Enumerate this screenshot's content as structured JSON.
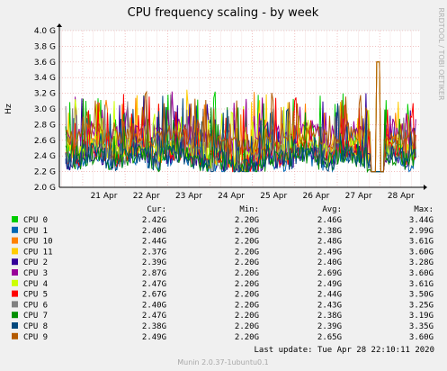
{
  "chart_data": {
    "type": "line",
    "title": "CPU frequency scaling - by week",
    "ylabel": "Hz",
    "ylim": [
      2.0,
      4.0
    ],
    "yticks": [
      "2.0 G",
      "2.2 G",
      "2.4 G",
      "2.6 G",
      "2.8 G",
      "3.0 G",
      "3.2 G",
      "3.4 G",
      "3.6 G",
      "3.8 G",
      "4.0 G"
    ],
    "xticks": [
      "21 Apr",
      "22 Apr",
      "23 Apr",
      "24 Apr",
      "25 Apr",
      "26 Apr",
      "27 Apr",
      "28 Apr"
    ],
    "x_range_days": [
      20.45,
      28.95
    ],
    "grid": true,
    "watermark": "RRDTOOL / TOBI OETIKER",
    "table_headers": [
      "Cur:",
      "Min:",
      "Avg:",
      "Max:"
    ],
    "series": [
      {
        "name": "CPU 0",
        "color": "#00cc00",
        "cur": "2.42G",
        "min": "2.20G",
        "avg": "2.46G",
        "max": "3.44G"
      },
      {
        "name": "CPU 1",
        "color": "#0066b3",
        "cur": "2.40G",
        "min": "2.20G",
        "avg": "2.38G",
        "max": "2.99G"
      },
      {
        "name": "CPU 10",
        "color": "#ff8000",
        "cur": "2.44G",
        "min": "2.20G",
        "avg": "2.48G",
        "max": "3.61G"
      },
      {
        "name": "CPU 11",
        "color": "#ffcc00",
        "cur": "2.37G",
        "min": "2.20G",
        "avg": "2.49G",
        "max": "3.60G"
      },
      {
        "name": "CPU 2",
        "color": "#330099",
        "cur": "2.39G",
        "min": "2.20G",
        "avg": "2.40G",
        "max": "3.28G"
      },
      {
        "name": "CPU 3",
        "color": "#990099",
        "cur": "2.87G",
        "min": "2.20G",
        "avg": "2.69G",
        "max": "3.60G"
      },
      {
        "name": "CPU 4",
        "color": "#ccff00",
        "cur": "2.47G",
        "min": "2.20G",
        "avg": "2.49G",
        "max": "3.61G"
      },
      {
        "name": "CPU 5",
        "color": "#ff0000",
        "cur": "2.67G",
        "min": "2.20G",
        "avg": "2.44G",
        "max": "3.50G"
      },
      {
        "name": "CPU 6",
        "color": "#808080",
        "cur": "2.40G",
        "min": "2.20G",
        "avg": "2.43G",
        "max": "3.25G"
      },
      {
        "name": "CPU 7",
        "color": "#008f00",
        "cur": "2.47G",
        "min": "2.20G",
        "avg": "2.38G",
        "max": "3.19G"
      },
      {
        "name": "CPU 8",
        "color": "#00487d",
        "cur": "2.38G",
        "min": "2.20G",
        "avg": "2.39G",
        "max": "3.35G"
      },
      {
        "name": "CPU 9",
        "color": "#b35a00",
        "cur": "2.49G",
        "min": "2.20G",
        "avg": "2.65G",
        "max": "3.60G"
      }
    ],
    "last_update": "Last update: Tue Apr 28 22:10:11 2020",
    "footer": "Munin 2.0.37-1ubuntu0.1"
  }
}
